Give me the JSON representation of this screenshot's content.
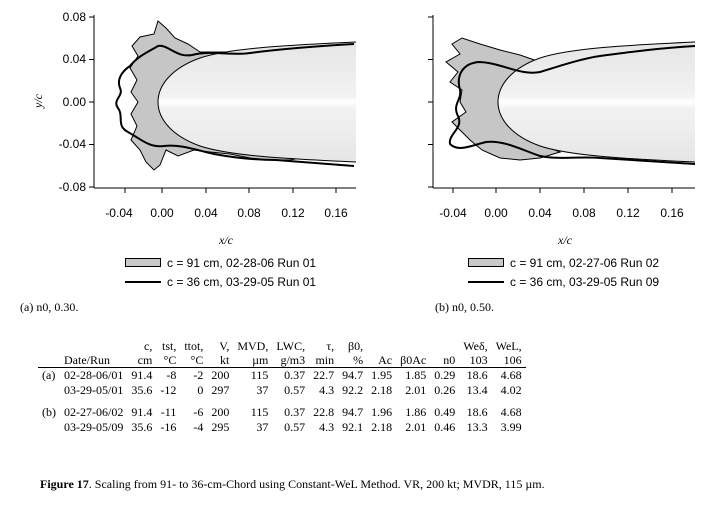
{
  "plots": [
    {
      "y_ticks": [
        "0.08",
        "0.04",
        "0.00",
        "-0.04",
        "-0.08"
      ],
      "x_ticks": [
        "-0.04",
        "0.00",
        "0.04",
        "0.08",
        "0.12",
        "0.16"
      ],
      "ylabel": "y/c",
      "xlabel": "x/c",
      "legend": [
        {
          "swatch": "filled",
          "text": "c = 91 cm, 02-28-06 Run 01"
        },
        {
          "swatch": "line",
          "text": "c = 36 cm, 03-29-05 Run 01"
        }
      ],
      "caption": "(a)  n0, 0.30."
    },
    {
      "y_ticks": [],
      "x_ticks": [
        "-0.04",
        "0.00",
        "0.04",
        "0.08",
        "0.12",
        "0.16"
      ],
      "ylabel": "",
      "xlabel": "x/c",
      "legend": [
        {
          "swatch": "filled",
          "text": "c = 91 cm, 02-27-06 Run 02"
        },
        {
          "swatch": "line",
          "text": "c = 36 cm, 03-29-05 Run 09"
        }
      ],
      "caption": "(b)  n0, 0.50."
    }
  ],
  "chart_data": [
    {
      "type": "line",
      "title": "",
      "xlabel": "x/c",
      "ylabel": "y/c",
      "xlim": [
        -0.07,
        0.18
      ],
      "ylim": [
        -0.08,
        0.08
      ],
      "series": [
        {
          "name": "c = 91 cm, 02-28-06 Run 01",
          "x": [
            0.0,
            0.02,
            0.06,
            0.1,
            0.14
          ],
          "y": [
            0.0,
            0.03,
            0.045,
            0.05,
            0.053
          ]
        },
        {
          "name": "c = 36 cm, 03-29-05 Run 01",
          "x": [
            0.0,
            0.02,
            0.06,
            0.1,
            0.14
          ],
          "y": [
            0.0,
            0.04,
            0.05,
            0.055,
            0.058
          ]
        }
      ]
    },
    {
      "type": "line",
      "title": "",
      "xlabel": "x/c",
      "ylabel": "",
      "xlim": [
        -0.07,
        0.18
      ],
      "ylim": [
        -0.08,
        0.08
      ],
      "series": [
        {
          "name": "c = 91 cm, 02-27-06 Run 02",
          "x": [
            0.0,
            0.02,
            0.06,
            0.1,
            0.14
          ],
          "y": [
            0.0,
            0.03,
            0.045,
            0.05,
            0.053
          ]
        },
        {
          "name": "c = 36 cm, 03-29-05 Run 09",
          "x": [
            0.0,
            0.02,
            0.06,
            0.1,
            0.14
          ],
          "y": [
            0.0,
            0.04,
            0.05,
            0.055,
            0.058
          ]
        }
      ]
    }
  ],
  "table": {
    "headers": [
      {
        "a": "",
        "b": ""
      },
      {
        "a": "Date/Run",
        "b": ""
      },
      {
        "a": "c,",
        "b": "cm"
      },
      {
        "a": "tst,",
        "b": "°C"
      },
      {
        "a": "ttot,",
        "b": "°C"
      },
      {
        "a": "V,",
        "b": "kt"
      },
      {
        "a": "MVD,",
        "b": "µm"
      },
      {
        "a": "LWC,",
        "b": "g/m3"
      },
      {
        "a": "τ,",
        "b": "min"
      },
      {
        "a": "β0,",
        "b": "%"
      },
      {
        "a": "Ac",
        "b": ""
      },
      {
        "a": "β0Ac",
        "b": ""
      },
      {
        "a": "n0",
        "b": ""
      },
      {
        "a": "Weδ,",
        "b": "103"
      },
      {
        "a": "WeL,",
        "b": "106"
      }
    ],
    "rows": [
      [
        "(a)",
        "02-28-06/01",
        "91.4",
        "-8",
        "-2",
        "200",
        "115",
        "0.37",
        "22.7",
        "94.7",
        "1.95",
        "1.85",
        "0.29",
        "18.6",
        "4.68"
      ],
      [
        "",
        "03-29-05/01",
        "35.6",
        "-12",
        "0",
        "297",
        "37",
        "0.57",
        "4.3",
        "92.2",
        "2.18",
        "2.01",
        "0.26",
        "13.4",
        "4.02"
      ],
      [
        "(b)",
        "02-27-06/02",
        "91.4",
        "-11",
        "-6",
        "200",
        "115",
        "0.37",
        "22.8",
        "94.7",
        "1.96",
        "1.86",
        "0.49",
        "18.6",
        "4.68"
      ],
      [
        "",
        "03-29-05/09",
        "35.6",
        "-16",
        "-4",
        "295",
        "37",
        "0.57",
        "4.3",
        "92.1",
        "2.18",
        "2.01",
        "0.46",
        "13.3",
        "3.99"
      ]
    ]
  },
  "figure_caption": {
    "label": "Figure 17",
    "text": ".  Scaling from 91- to 36-cm-Chord using Constant-WeL Method.  VR, 200 kt; MVDR, 115 µm."
  }
}
